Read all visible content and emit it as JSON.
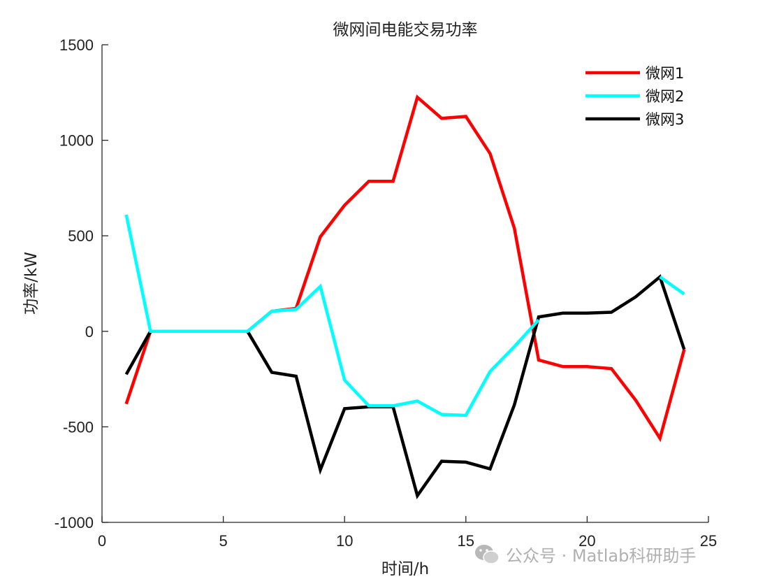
{
  "chart_data": {
    "type": "line",
    "title": "微网间电能交易功率",
    "xlabel": "时间/h",
    "ylabel": "功率/kW",
    "xlim": [
      0,
      25
    ],
    "ylim": [
      -1000,
      1500
    ],
    "xticks": [
      0,
      5,
      10,
      15,
      20,
      25
    ],
    "yticks": [
      -1000,
      -500,
      0,
      500,
      1000,
      1500
    ],
    "grid": false,
    "legend_position": "top-right",
    "x": [
      1,
      2,
      3,
      4,
      5,
      6,
      7,
      8,
      9,
      10,
      11,
      12,
      13,
      14,
      15,
      16,
      17,
      18,
      19,
      20,
      21,
      22,
      23,
      24
    ],
    "series": [
      {
        "name": "微网1",
        "color": "#ff0000",
        "values": [
          -380,
          0,
          0,
          0,
          0,
          0,
          105,
          120,
          495,
          660,
          785,
          785,
          1225,
          1115,
          1125,
          930,
          540,
          -150,
          -185,
          -185,
          -195,
          -360,
          -560,
          -95
        ]
      },
      {
        "name": "微网2",
        "color": "#00ffff",
        "values": [
          610,
          0,
          0,
          0,
          0,
          0,
          105,
          115,
          235,
          -255,
          -390,
          -390,
          -365,
          -435,
          -440,
          -210,
          -80,
          60,
          null,
          null,
          null,
          null,
          285,
          195
        ]
      },
      {
        "name": "微网3",
        "color": "#000000",
        "values": [
          -225,
          0,
          0,
          0,
          0,
          0,
          -215,
          -235,
          -725,
          -405,
          -395,
          -395,
          -860,
          -680,
          -685,
          -720,
          -385,
          75,
          95,
          95,
          100,
          180,
          285,
          -95
        ]
      }
    ]
  },
  "watermark": {
    "text": "公众号 · Matlab科研助手",
    "icon": "wechat-icon"
  }
}
